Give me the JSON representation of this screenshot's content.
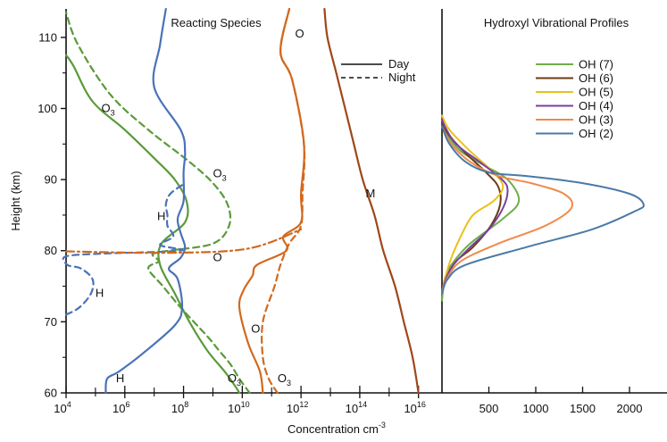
{
  "chart_data": [
    {
      "panel": "left",
      "type": "line",
      "title": "Reacting Species",
      "xlabel": "Concentration cm",
      "xlabel_superscript": "-3",
      "ylabel": "Height (km)",
      "xscale": "log",
      "xlim_log10": [
        4,
        16.8
      ],
      "ylim": [
        60,
        114
      ],
      "x_ticks": [
        {
          "base": "10",
          "exp": "4",
          "log10": 4
        },
        {
          "base": "10",
          "exp": "6",
          "log10": 6
        },
        {
          "base": "10",
          "exp": "8",
          "log10": 8
        },
        {
          "base": "10",
          "exp": "10",
          "log10": 10
        },
        {
          "base": "10",
          "exp": "12",
          "log10": 12
        },
        {
          "base": "10",
          "exp": "14",
          "log10": 14
        },
        {
          "base": "10",
          "exp": "16",
          "log10": 16
        }
      ],
      "y_ticks": [
        "60",
        "70",
        "80",
        "90",
        "100",
        "110"
      ],
      "legend": [
        {
          "label": "Day",
          "style": "solid"
        },
        {
          "label": "Night",
          "style": "dashed"
        }
      ],
      "colors": {
        "O3": "#5a9a3a",
        "H": "#4a72b8",
        "O": "#d2691e",
        "M": "#a0461a"
      },
      "series": [
        {
          "name": "O3",
          "style": "day",
          "color": "#5a9a3a",
          "points": [
            [
              9.9,
              60
            ],
            [
              9.75,
              61
            ],
            [
              9.4,
              63
            ],
            [
              8.8,
              66
            ],
            [
              8.2,
              70
            ],
            [
              7.7,
              74
            ],
            [
              7.2,
              78
            ],
            [
              7.25,
              81
            ],
            [
              8.05,
              84
            ],
            [
              8.1,
              87
            ],
            [
              7.7,
              90
            ],
            [
              7.0,
              93
            ],
            [
              6.0,
              97
            ],
            [
              4.9,
              101
            ],
            [
              4.25,
              106
            ],
            [
              4.0,
              107.5
            ]
          ]
        },
        {
          "name": "O3",
          "style": "night",
          "color": "#5a9a3a",
          "points": [
            [
              10.25,
              60
            ],
            [
              9.9,
              62
            ],
            [
              9.6,
              64
            ],
            [
              9.2,
              66
            ],
            [
              8.8,
              68
            ],
            [
              7.9,
              72
            ],
            [
              7.3,
              75
            ],
            [
              6.8,
              77.5
            ],
            [
              7.15,
              78.5
            ],
            [
              6.95,
              79.5
            ],
            [
              7.5,
              80
            ],
            [
              9.0,
              81
            ],
            [
              9.55,
              83.5
            ],
            [
              9.5,
              86.5
            ],
            [
              9.0,
              89.5
            ],
            [
              8.2,
              92.5
            ],
            [
              6.8,
              97
            ],
            [
              5.5,
              102
            ],
            [
              4.4,
              109
            ],
            [
              4.0,
              113.5
            ]
          ]
        },
        {
          "name": "H",
          "style": "day",
          "color": "#4a72b8",
          "points": [
            [
              5.35,
              60
            ],
            [
              5.4,
              62
            ],
            [
              5.8,
              63
            ],
            [
              6.6,
              65.5
            ],
            [
              7.7,
              69.5
            ],
            [
              7.95,
              72
            ],
            [
              7.8,
              76
            ],
            [
              7.5,
              77.5
            ],
            [
              7.9,
              79
            ],
            [
              8.05,
              80.5
            ],
            [
              7.9,
              82.5
            ],
            [
              7.8,
              84.5
            ],
            [
              8.0,
              87
            ],
            [
              8.0,
              91
            ],
            [
              8.05,
              94
            ],
            [
              7.9,
              97
            ],
            [
              7.0,
              103
            ],
            [
              7.2,
              109
            ],
            [
              7.4,
              114
            ]
          ]
        },
        {
          "name": "H",
          "style": "night",
          "color": "#4a72b8",
          "points": [
            [
              4.0,
              71
            ],
            [
              4.45,
              72
            ],
            [
              4.85,
              74
            ],
            [
              4.9,
              76
            ],
            [
              4.5,
              77.5
            ],
            [
              4.05,
              78
            ],
            [
              4.0,
              79.2
            ],
            [
              5.3,
              79.6
            ],
            [
              7.9,
              80
            ],
            [
              7.2,
              80.8
            ],
            [
              7.65,
              82
            ],
            [
              7.45,
              83.5
            ],
            [
              7.45,
              85
            ],
            [
              7.4,
              86.5
            ],
            [
              7.55,
              88
            ],
            [
              8.05,
              89.5
            ]
          ]
        },
        {
          "name": "O",
          "style": "day",
          "color": "#d2691e",
          "points": [
            [
              10.7,
              60
            ],
            [
              10.6,
              63
            ],
            [
              10.2,
              67
            ],
            [
              9.9,
              72
            ],
            [
              10.05,
              74.5
            ],
            [
              10.35,
              76.5
            ],
            [
              10.5,
              78
            ],
            [
              11.5,
              80
            ],
            [
              11.4,
              82
            ],
            [
              12.0,
              84
            ],
            [
              12.0,
              88
            ],
            [
              12.1,
              95
            ],
            [
              11.7,
              104
            ],
            [
              11.3,
              108
            ],
            [
              11.6,
              114
            ]
          ]
        },
        {
          "name": "O",
          "style": "night",
          "color": "#d2691e",
          "points": [
            [
              11.2,
              60
            ],
            [
              10.9,
              62
            ],
            [
              10.7,
              65
            ],
            [
              10.7,
              70
            ],
            [
              11.1,
              75
            ],
            [
              11.3,
              78
            ],
            [
              11.6,
              81
            ],
            [
              12.0,
              83.5
            ],
            [
              12.05,
              88
            ],
            [
              12.1,
              95
            ],
            [
              11.7,
              104
            ],
            [
              11.3,
              108
            ],
            [
              11.6,
              114
            ]
          ]
        },
        {
          "name": "O",
          "style": "dashdot",
          "color": "#d2691e",
          "points": [
            [
              4.0,
              79.9
            ],
            [
              7.5,
              79.7
            ],
            [
              10.2,
              80.3
            ],
            [
              12.0,
              83
            ]
          ]
        },
        {
          "name": "M",
          "style": "day",
          "color": "#a0461a",
          "points": [
            [
              16.0,
              60
            ],
            [
              15.8,
              65
            ],
            [
              15.5,
              70
            ],
            [
              15.2,
              75
            ],
            [
              14.8,
              80
            ],
            [
              14.5,
              85
            ],
            [
              14.1,
              90
            ],
            [
              13.8,
              95
            ],
            [
              13.5,
              100
            ],
            [
              13.2,
              105
            ],
            [
              12.9,
              110
            ],
            [
              12.8,
              114
            ]
          ]
        }
      ],
      "curve_labels": [
        {
          "text": "O",
          "sub": "3",
          "x_log10": 5.2,
          "y": 99.5
        },
        {
          "text": "O",
          "sub": "3",
          "x_log10": 9.0,
          "y": 90.3
        },
        {
          "text": "H",
          "sub": "",
          "x_log10": 7.1,
          "y": 84.3
        },
        {
          "text": "O",
          "sub": "",
          "x_log10": 9.0,
          "y": 78.5
        },
        {
          "text": "H",
          "sub": "",
          "x_log10": 5.0,
          "y": 73.5
        },
        {
          "text": "O",
          "sub": "",
          "x_log10": 10.3,
          "y": 68.5
        },
        {
          "text": "H",
          "sub": "",
          "x_log10": 5.7,
          "y": 61.5
        },
        {
          "text": "O",
          "sub": "3",
          "x_log10": 9.5,
          "y": 61.5
        },
        {
          "text": "O",
          "sub": "3",
          "x_log10": 11.2,
          "y": 61.5
        },
        {
          "text": "O",
          "sub": "",
          "x_log10": 11.8,
          "y": 110
        },
        {
          "text": "M",
          "sub": "",
          "x_log10": 14.2,
          "y": 87.5
        }
      ]
    },
    {
      "panel": "right",
      "type": "line",
      "title": "Hydroxyl Vibrational Profiles",
      "xlim": [
        0,
        2400
      ],
      "ylim": [
        60,
        114
      ],
      "x_ticks": [
        "500",
        "1000",
        "1500",
        "2000"
      ],
      "x_tick_values": [
        500,
        1000,
        1500,
        2000
      ],
      "series": [
        {
          "name": "OH (7)",
          "color": "#6fae4a",
          "points": [
            [
              0,
              73
            ],
            [
              30,
              76
            ],
            [
              100,
              78
            ],
            [
              300,
              81
            ],
            [
              650,
              84.5
            ],
            [
              820,
              87
            ],
            [
              700,
              90
            ],
            [
              450,
              92
            ],
            [
              200,
              94
            ],
            [
              50,
              96.5
            ],
            [
              0,
              99
            ]
          ]
        },
        {
          "name": "OH (6)",
          "color": "#6b3d14",
          "points": [
            [
              0,
              74
            ],
            [
              40,
              76
            ],
            [
              150,
              78.5
            ],
            [
              330,
              80.5
            ],
            [
              520,
              83.5
            ],
            [
              620,
              86.5
            ],
            [
              600,
              89
            ],
            [
              470,
              91
            ],
            [
              230,
              94
            ],
            [
              60,
              96.5
            ],
            [
              0,
              98
            ]
          ]
        },
        {
          "name": "OH (5)",
          "color": "#e8c21a",
          "points": [
            [
              0,
              74
            ],
            [
              30,
              76
            ],
            [
              100,
              79
            ],
            [
              200,
              82
            ],
            [
              330,
              85
            ],
            [
              550,
              87
            ],
            [
              650,
              89
            ],
            [
              550,
              91
            ],
            [
              300,
              94
            ],
            [
              80,
              97
            ],
            [
              0,
              99
            ]
          ]
        },
        {
          "name": "OH (4)",
          "color": "#7a3fa0",
          "points": [
            [
              0,
              74
            ],
            [
              40,
              76
            ],
            [
              120,
              78
            ],
            [
              300,
              80.5
            ],
            [
              500,
              83
            ],
            [
              650,
              86
            ],
            [
              700,
              88.5
            ],
            [
              640,
              90
            ],
            [
              400,
              92.5
            ],
            [
              150,
              95
            ],
            [
              30,
              97.5
            ],
            [
              0,
              98.5
            ]
          ]
        },
        {
          "name": "OH (3)",
          "color": "#ef8a4a",
          "points": [
            [
              0,
              74
            ],
            [
              50,
              76
            ],
            [
              200,
              78.5
            ],
            [
              600,
              81
            ],
            [
              1100,
              83.5
            ],
            [
              1380,
              86
            ],
            [
              1300,
              88
            ],
            [
              950,
              89.5
            ],
            [
              600,
              90.5
            ],
            [
              300,
              92.5
            ],
            [
              100,
              95
            ],
            [
              0,
              97.5
            ]
          ]
        },
        {
          "name": "OH (2)",
          "color": "#4a7aa8",
          "points": [
            [
              0,
              74
            ],
            [
              60,
              76
            ],
            [
              250,
              78
            ],
            [
              900,
              80.5
            ],
            [
              1600,
              83
            ],
            [
              2050,
              85.5
            ],
            [
              2150,
              86.5
            ],
            [
              2000,
              88
            ],
            [
              1500,
              89.5
            ],
            [
              900,
              90.5
            ],
            [
              500,
              91
            ],
            [
              250,
              92.5
            ],
            [
              80,
              95
            ],
            [
              0,
              97.5
            ]
          ]
        }
      ]
    }
  ]
}
